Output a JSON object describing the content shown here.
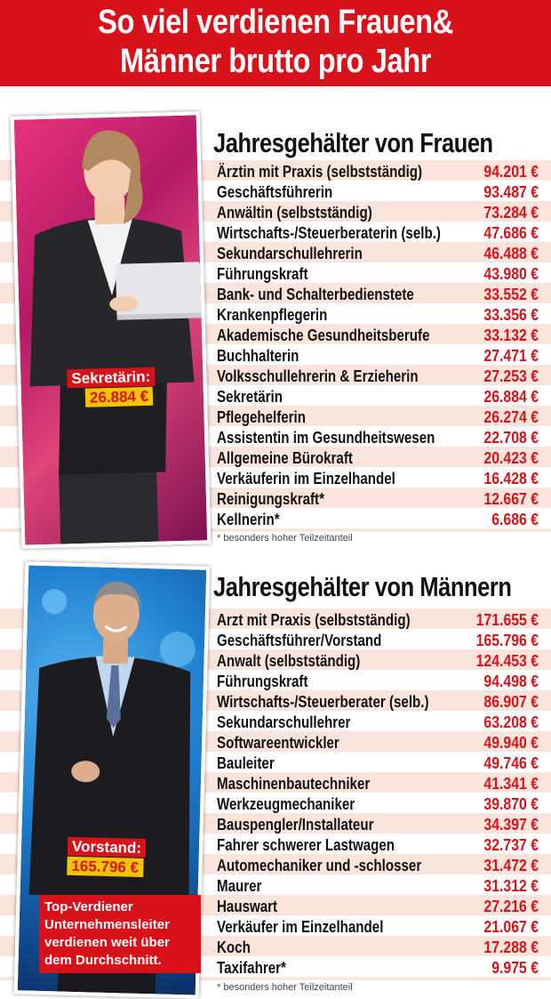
{
  "headline": {
    "line1": "So viel verdienen Frauen&",
    "line2": "Männer brutto pro Jahr"
  },
  "colors": {
    "accent_red": "#d8121a",
    "stripe_pink": "#fbe4dc",
    "label_yellow": "#f5c400"
  },
  "women": {
    "title": "Jahresgehälter von Frauen",
    "photo_label": "Sekretärin:",
    "photo_value": "26.884 €",
    "rows": [
      {
        "job": "Ärztin mit Praxis (selbstständig)",
        "salary": "94.201 €"
      },
      {
        "job": "Geschäftsführerin",
        "salary": "93.487 €"
      },
      {
        "job": "Anwältin (selbstständig)",
        "salary": "73.284 €"
      },
      {
        "job": "Wirtschafts-/Steuerberaterin (selb.)",
        "salary": "47.686 €"
      },
      {
        "job": "Sekundarschullehrerin",
        "salary": "46.488 €"
      },
      {
        "job": "Führungskraft",
        "salary": "43.980 €"
      },
      {
        "job": "Bank- und Schalterbedienstete",
        "salary": "33.552 €"
      },
      {
        "job": "Krankenpflegerin",
        "salary": "33.356 €"
      },
      {
        "job": "Akademische Gesundheitsberufe",
        "salary": "33.132 €"
      },
      {
        "job": "Buchhalterin",
        "salary": "27.471 €"
      },
      {
        "job": "Volksschullehrerin & Erzieherin",
        "salary": "27.253 €"
      },
      {
        "job": "Sekretärin",
        "salary": "26.884 €"
      },
      {
        "job": "Pflegehelferin",
        "salary": "26.274 €"
      },
      {
        "job": "Assistentin im Gesundheitswesen",
        "salary": "22.708 €"
      },
      {
        "job": "Allgemeine Bürokraft",
        "salary": "20.423 €"
      },
      {
        "job": "Verkäuferin im Einzelhandel",
        "salary": "16.428 €"
      },
      {
        "job": "Reinigungskraft*",
        "salary": "12.667 €"
      },
      {
        "job": "Kellnerin*",
        "salary": "6.686 €"
      }
    ],
    "footnote": "* besonders hoher Teilzeitanteil"
  },
  "men": {
    "title": "Jahresgehälter von Männern",
    "photo_label": "Vorstand:",
    "photo_value": "165.796 €",
    "sticker_head": "Top-Verdiener",
    "sticker_line1": "Unternehmensleiter",
    "sticker_line2": "verdienen weit über",
    "sticker_line3": "dem Durchschnitt.",
    "rows": [
      {
        "job": "Arzt mit Praxis (selbstständig)",
        "salary": "171.655 €"
      },
      {
        "job": "Geschäftsführer/Vorstand",
        "salary": "165.796 €"
      },
      {
        "job": "Anwalt (selbstständig)",
        "salary": "124.453 €"
      },
      {
        "job": "Führungskraft",
        "salary": "94.498 €"
      },
      {
        "job": "Wirtschafts-/Steuerberater (selb.)",
        "salary": "86.907 €"
      },
      {
        "job": "Sekundarschullehrer",
        "salary": "63.208 €"
      },
      {
        "job": "Softwareentwickler",
        "salary": "49.940 €"
      },
      {
        "job": "Bauleiter",
        "salary": "49.746 €"
      },
      {
        "job": "Maschinenbautechniker",
        "salary": "41.341 €"
      },
      {
        "job": "Werkzeugmechaniker",
        "salary": "39.870 €"
      },
      {
        "job": "Bauspengler/Installateur",
        "salary": "34.397 €"
      },
      {
        "job": "Fahrer schwerer Lastwagen",
        "salary": "32.737 €"
      },
      {
        "job": "Automechaniker und -schlosser",
        "salary": "31.472 €"
      },
      {
        "job": "Maurer",
        "salary": "31.312 €"
      },
      {
        "job": "Hauswart",
        "salary": "27.216 €"
      },
      {
        "job": "Verkäufer im Einzelhandel",
        "salary": "21.067 €"
      },
      {
        "job": "Koch",
        "salary": "17.288 €"
      },
      {
        "job": "Taxifahrer*",
        "salary": "9.975 €"
      }
    ],
    "footnote": "* besonders hoher Teilzeitanteil"
  }
}
